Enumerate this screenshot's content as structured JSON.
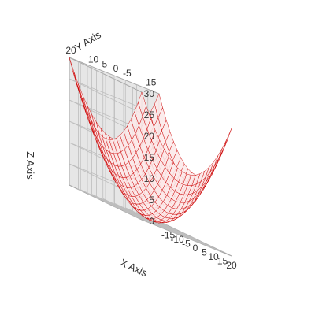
{
  "chart_data": {
    "type": "surface3d",
    "style": "wireframe",
    "grid": true,
    "x_axis": {
      "label": "X Axis",
      "range": [
        -20,
        20
      ],
      "ticks": [
        "-15",
        "-10",
        "-5",
        "0",
        "5",
        "10",
        "15",
        "20"
      ]
    },
    "y_axis": {
      "label": "Y Axis",
      "range": [
        -20,
        20
      ],
      "ticks": [
        "-15",
        "-5",
        "0",
        "5",
        "10",
        "20"
      ]
    },
    "z_axis": {
      "label": "Z Axis",
      "range": [
        0,
        30
      ],
      "ticks": [
        "0",
        "5",
        "10",
        "15",
        "20",
        "25",
        "30"
      ]
    },
    "surface": {
      "function": "z = 0.0375 * (x^2 + y^2)",
      "z_at_corner_20_20": 30,
      "z_at_origin": 0,
      "grid_step": 2
    },
    "colors": {
      "mesh": "#cc0000",
      "fill": "#fbe9e9",
      "wall": "#e6e6e6",
      "floor": "#dcdcdc",
      "gridline": "#bdbdbd",
      "axis_text": "#333333"
    }
  }
}
